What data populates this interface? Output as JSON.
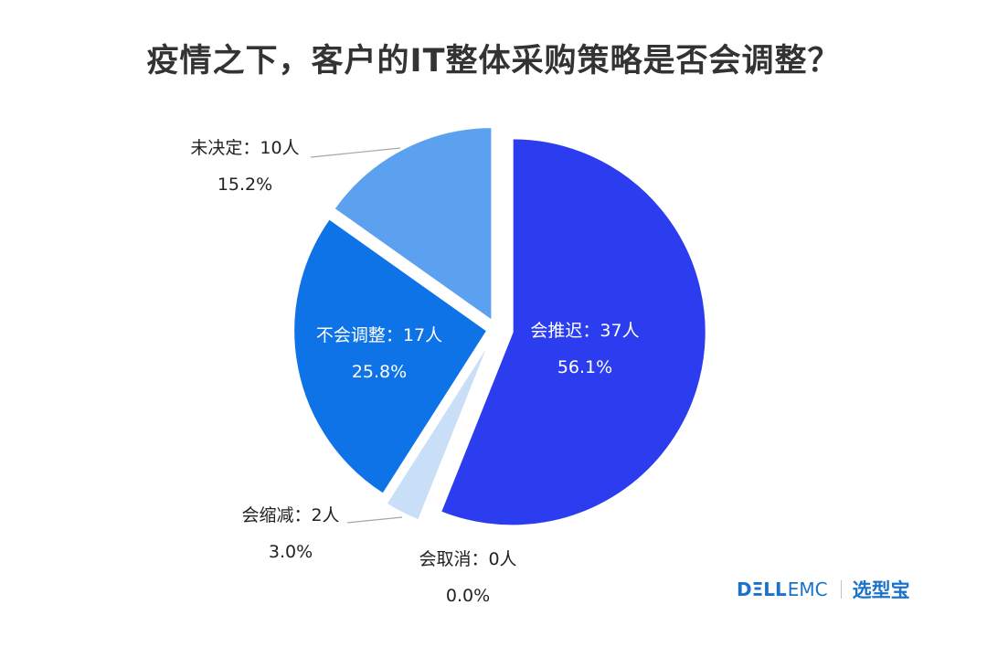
{
  "chart_data": {
    "type": "pie",
    "title": "疫情之下，客户的IT整体采购策略是否会调整？",
    "slices": [
      {
        "label": "会推迟：37人",
        "count": 37,
        "percent": "56.1%",
        "value": 56.1,
        "color": "#2c3def"
      },
      {
        "label": "会取消：0人",
        "count": 0,
        "percent": "0.0%",
        "value": 0.0,
        "color": "#c9dff8"
      },
      {
        "label": "会缩减：2人",
        "count": 2,
        "percent": "3.0%",
        "value": 3.0,
        "color": "#c9dff8"
      },
      {
        "label": "不会调整：17人",
        "count": 17,
        "percent": "25.8%",
        "value": 25.8,
        "color": "#0f73e8"
      },
      {
        "label": "未决定：10人",
        "count": 10,
        "percent": "15.2%",
        "value": 15.2,
        "color": "#5ba1f0"
      }
    ],
    "start_angle": "12 o'clock",
    "direction": "clockwise",
    "exploded": true
  },
  "branding": {
    "logo_dell": "DΞLL",
    "logo_emc": "EMC",
    "site": "选型宝"
  }
}
